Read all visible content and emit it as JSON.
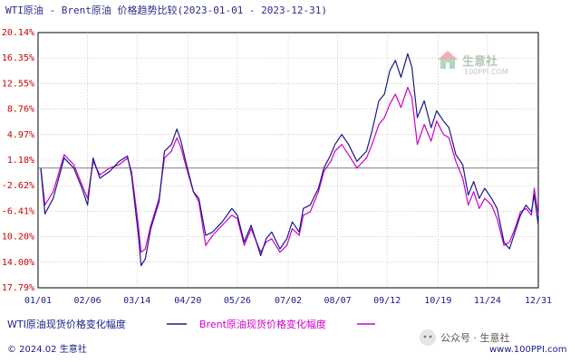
{
  "chart_data": {
    "type": "line",
    "title": "WTI原油 - Brent原油 价格趋势比较(2023-01-01 - 2023-12-31)",
    "xlabel": "",
    "ylabel": "",
    "y_ticks": [
      "20.14%",
      "16.35%",
      "12.55%",
      "8.76%",
      "4.97%",
      "1.18%",
      "-2.62%",
      "-6.41%",
      "-10.20%",
      "-14.00%",
      "-17.79%"
    ],
    "ylim": [
      -17.79,
      20.14
    ],
    "x_ticks": [
      "01/01",
      "02/06",
      "03/14",
      "04/20",
      "05/26",
      "07/02",
      "08/07",
      "09/12",
      "10/19",
      "11/24",
      "12/31"
    ],
    "x_tick_dates": [
      "2023-01-01",
      "2023-02-06",
      "2023-03-14",
      "2023-04-20",
      "2023-05-26",
      "2023-07-02",
      "2023-08-07",
      "2023-09-12",
      "2023-10-19",
      "2023-11-24",
      "2023-12-31"
    ],
    "reference_line": 0,
    "grid": true,
    "legend_position": "bottom",
    "series": [
      {
        "name": "WTI原油现货价格变化幅度",
        "color": "#1a1a8a",
        "points": [
          [
            "2023-01-03",
            0.0
          ],
          [
            "2023-01-06",
            -6.8
          ],
          [
            "2023-01-12",
            -4.5
          ],
          [
            "2023-01-20",
            1.5
          ],
          [
            "2023-01-27",
            0.0
          ],
          [
            "2023-02-02",
            -3.0
          ],
          [
            "2023-02-06",
            -5.5
          ],
          [
            "2023-02-10",
            1.5
          ],
          [
            "2023-02-15",
            -1.5
          ],
          [
            "2023-02-22",
            -0.5
          ],
          [
            "2023-03-01",
            1.0
          ],
          [
            "2023-03-07",
            1.8
          ],
          [
            "2023-03-10",
            -1.0
          ],
          [
            "2023-03-15",
            -10.0
          ],
          [
            "2023-03-17",
            -14.5
          ],
          [
            "2023-03-20",
            -13.5
          ],
          [
            "2023-03-24",
            -9.0
          ],
          [
            "2023-03-30",
            -5.0
          ],
          [
            "2023-04-03",
            2.5
          ],
          [
            "2023-04-08",
            3.5
          ],
          [
            "2023-04-12",
            5.8
          ],
          [
            "2023-04-15",
            4.0
          ],
          [
            "2023-04-19",
            0.5
          ],
          [
            "2023-04-24",
            -3.5
          ],
          [
            "2023-04-28",
            -4.5
          ],
          [
            "2023-05-03",
            -10.0
          ],
          [
            "2023-05-08",
            -9.5
          ],
          [
            "2023-05-15",
            -8.0
          ],
          [
            "2023-05-22",
            -6.0
          ],
          [
            "2023-05-26",
            -7.0
          ],
          [
            "2023-05-31",
            -11.0
          ],
          [
            "2023-06-05",
            -8.5
          ],
          [
            "2023-06-12",
            -13.0
          ],
          [
            "2023-06-16",
            -10.5
          ],
          [
            "2023-06-20",
            -9.5
          ],
          [
            "2023-06-26",
            -12.0
          ],
          [
            "2023-07-01",
            -10.5
          ],
          [
            "2023-07-05",
            -8.0
          ],
          [
            "2023-07-10",
            -9.5
          ],
          [
            "2023-07-13",
            -6.0
          ],
          [
            "2023-07-18",
            -5.5
          ],
          [
            "2023-07-24",
            -3.0
          ],
          [
            "2023-07-28",
            0.0
          ],
          [
            "2023-08-02",
            2.0
          ],
          [
            "2023-08-05",
            3.5
          ],
          [
            "2023-08-10",
            5.0
          ],
          [
            "2023-08-15",
            3.5
          ],
          [
            "2023-08-21",
            1.0
          ],
          [
            "2023-08-28",
            2.5
          ],
          [
            "2023-09-01",
            5.5
          ],
          [
            "2023-09-06",
            10.0
          ],
          [
            "2023-09-10",
            11.0
          ],
          [
            "2023-09-14",
            14.5
          ],
          [
            "2023-09-18",
            16.0
          ],
          [
            "2023-09-22",
            13.5
          ],
          [
            "2023-09-27",
            17.0
          ],
          [
            "2023-09-30",
            15.0
          ],
          [
            "2023-10-04",
            7.5
          ],
          [
            "2023-10-09",
            10.0
          ],
          [
            "2023-10-14",
            6.0
          ],
          [
            "2023-10-18",
            8.5
          ],
          [
            "2023-10-23",
            7.0
          ],
          [
            "2023-10-27",
            6.0
          ],
          [
            "2023-11-01",
            2.0
          ],
          [
            "2023-11-06",
            0.5
          ],
          [
            "2023-11-10",
            -4.0
          ],
          [
            "2023-11-14",
            -2.0
          ],
          [
            "2023-11-18",
            -4.5
          ],
          [
            "2023-11-22",
            -3.0
          ],
          [
            "2023-11-27",
            -4.5
          ],
          [
            "2023-12-01",
            -6.0
          ],
          [
            "2023-12-06",
            -11.0
          ],
          [
            "2023-12-10",
            -12.0
          ],
          [
            "2023-12-14",
            -9.5
          ],
          [
            "2023-12-18",
            -7.0
          ],
          [
            "2023-12-22",
            -5.5
          ],
          [
            "2023-12-26",
            -6.5
          ],
          [
            "2023-12-28",
            -4.0
          ],
          [
            "2023-12-31",
            -8.5
          ]
        ]
      },
      {
        "name": "Brent原油现货价格变化幅度",
        "color": "#cc00cc",
        "points": [
          [
            "2023-01-03",
            0.0
          ],
          [
            "2023-01-06",
            -5.5
          ],
          [
            "2023-01-12",
            -3.5
          ],
          [
            "2023-01-20",
            2.0
          ],
          [
            "2023-01-27",
            0.5
          ],
          [
            "2023-02-02",
            -2.5
          ],
          [
            "2023-02-06",
            -4.5
          ],
          [
            "2023-02-10",
            1.0
          ],
          [
            "2023-02-15",
            -1.0
          ],
          [
            "2023-02-22",
            0.0
          ],
          [
            "2023-03-01",
            0.5
          ],
          [
            "2023-03-07",
            1.5
          ],
          [
            "2023-03-10",
            -0.5
          ],
          [
            "2023-03-15",
            -8.5
          ],
          [
            "2023-03-17",
            -12.5
          ],
          [
            "2023-03-20",
            -12.0
          ],
          [
            "2023-03-24",
            -8.5
          ],
          [
            "2023-03-30",
            -4.5
          ],
          [
            "2023-04-03",
            1.5
          ],
          [
            "2023-04-08",
            2.5
          ],
          [
            "2023-04-12",
            4.5
          ],
          [
            "2023-04-15",
            3.0
          ],
          [
            "2023-04-19",
            0.0
          ],
          [
            "2023-04-24",
            -3.5
          ],
          [
            "2023-04-28",
            -5.0
          ],
          [
            "2023-05-03",
            -11.5
          ],
          [
            "2023-05-08",
            -10.0
          ],
          [
            "2023-05-15",
            -8.5
          ],
          [
            "2023-05-22",
            -7.0
          ],
          [
            "2023-05-26",
            -7.5
          ],
          [
            "2023-05-31",
            -11.5
          ],
          [
            "2023-06-05",
            -9.0
          ],
          [
            "2023-06-12",
            -12.5
          ],
          [
            "2023-06-16",
            -11.0
          ],
          [
            "2023-06-20",
            -10.5
          ],
          [
            "2023-06-26",
            -12.5
          ],
          [
            "2023-07-01",
            -11.5
          ],
          [
            "2023-07-05",
            -9.0
          ],
          [
            "2023-07-10",
            -10.0
          ],
          [
            "2023-07-13",
            -7.0
          ],
          [
            "2023-07-18",
            -6.5
          ],
          [
            "2023-07-24",
            -3.5
          ],
          [
            "2023-07-28",
            -0.5
          ],
          [
            "2023-08-02",
            1.0
          ],
          [
            "2023-08-05",
            2.5
          ],
          [
            "2023-08-10",
            3.5
          ],
          [
            "2023-08-15",
            2.0
          ],
          [
            "2023-08-21",
            0.0
          ],
          [
            "2023-08-28",
            1.5
          ],
          [
            "2023-09-01",
            3.5
          ],
          [
            "2023-09-06",
            6.5
          ],
          [
            "2023-09-10",
            7.5
          ],
          [
            "2023-09-14",
            9.5
          ],
          [
            "2023-09-18",
            11.0
          ],
          [
            "2023-09-22",
            9.0
          ],
          [
            "2023-09-27",
            12.0
          ],
          [
            "2023-09-30",
            10.5
          ],
          [
            "2023-10-04",
            3.5
          ],
          [
            "2023-10-09",
            6.5
          ],
          [
            "2023-10-14",
            4.0
          ],
          [
            "2023-10-18",
            7.0
          ],
          [
            "2023-10-23",
            5.0
          ],
          [
            "2023-10-27",
            4.5
          ],
          [
            "2023-11-01",
            1.0
          ],
          [
            "2023-11-06",
            -1.5
          ],
          [
            "2023-11-10",
            -5.5
          ],
          [
            "2023-11-14",
            -3.5
          ],
          [
            "2023-11-18",
            -6.0
          ],
          [
            "2023-11-22",
            -4.5
          ],
          [
            "2023-11-27",
            -5.5
          ],
          [
            "2023-12-01",
            -7.5
          ],
          [
            "2023-12-06",
            -11.5
          ],
          [
            "2023-12-10",
            -11.0
          ],
          [
            "2023-12-14",
            -9.0
          ],
          [
            "2023-12-18",
            -6.5
          ],
          [
            "2023-12-22",
            -6.0
          ],
          [
            "2023-12-26",
            -7.0
          ],
          [
            "2023-12-28",
            -3.0
          ],
          [
            "2023-12-31",
            -7.0
          ]
        ]
      }
    ]
  },
  "watermark": {
    "brand": "生意社",
    "url": "100PPI.COM"
  },
  "footer": {
    "copyright": "© 2024.02 生意社",
    "wechat": "公众号 · 生意社",
    "site": "www.100PPI.com"
  },
  "colors": {
    "title": "#2b2b8f",
    "ytick": "#cc0000",
    "xtick": "#1a1a8a",
    "grid": "#b0b0b0"
  }
}
